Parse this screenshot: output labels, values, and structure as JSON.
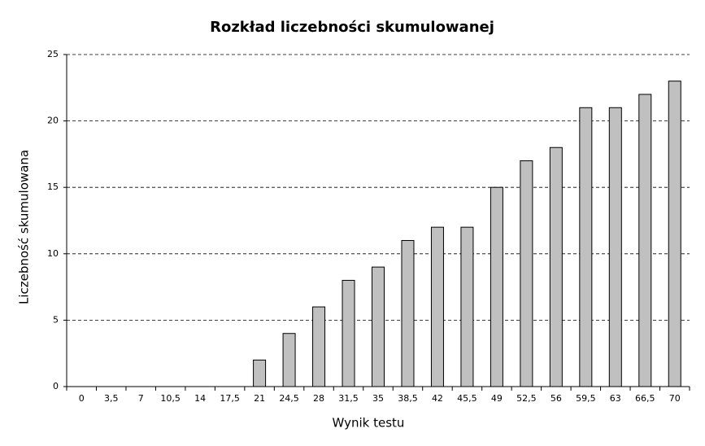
{
  "chart_data": {
    "type": "bar",
    "title": "Rozkład liczebności skumulowanej",
    "x_label": "Wynik testu",
    "y_label": "Liczebność skumulowana",
    "categories": [
      "0",
      "3,5",
      "7",
      "10,5",
      "14",
      "17,5",
      "21",
      "24,5",
      "28",
      "31,5",
      "35",
      "38,5",
      "42",
      "45,5",
      "49",
      "52,5",
      "56",
      "59,5",
      "63",
      "66,5",
      "70"
    ],
    "values": [
      0,
      0,
      0,
      0,
      0,
      0,
      2,
      4,
      6,
      8,
      9,
      11,
      12,
      12,
      15,
      17,
      18,
      21,
      21,
      22,
      23
    ],
    "color": "#c0c0c0",
    "ylim": [
      0,
      25
    ],
    "yticks": [
      0,
      5,
      10,
      15,
      20,
      25
    ],
    "grid": true
  }
}
